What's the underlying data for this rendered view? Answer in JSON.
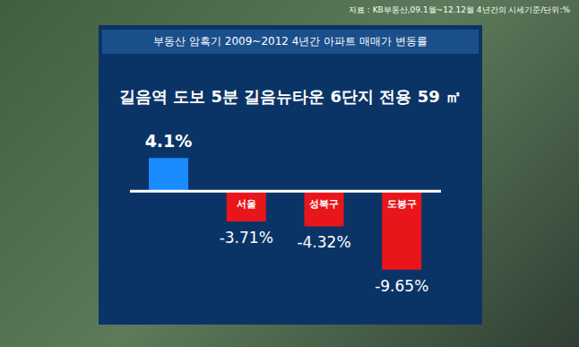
{
  "chart_data": {
    "type": "bar",
    "source": "자료 : KB부동산,09.1월~12.12월 4년간의 시세기준/단위:%",
    "title": "부동산 암흑기 2009~2012 4년간 아파트 매매가 변동률",
    "subtitle": "길음역 도보 5분 길음뉴타운 6단지 전용 59 ㎡",
    "categories": [
      null,
      "서울",
      "성북구",
      "도봉구"
    ],
    "values": [
      4.1,
      -3.71,
      -4.32,
      -9.65
    ],
    "value_labels": [
      "4.1%",
      "-3.71%",
      "-4.32%",
      "-9.65%"
    ],
    "colors": [
      "#1a8cff",
      "#e8161b",
      "#e8161b",
      "#e8161b"
    ],
    "ylim": [
      -14,
      7
    ],
    "grid": false,
    "data_labels": true,
    "tick_labels": false
  }
}
